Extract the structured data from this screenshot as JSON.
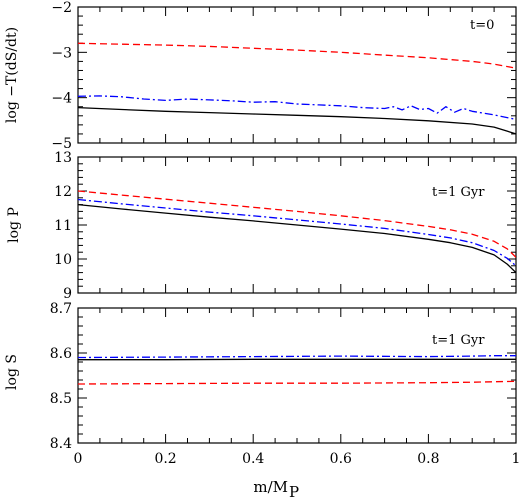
{
  "chart_data": [
    {
      "type": "line",
      "panel_label": "t=0",
      "ylabel": "log −T(dS/dt)",
      "xlim": [
        0,
        1
      ],
      "ylim": [
        -5,
        -2
      ],
      "yticks": [
        "−5",
        "−4",
        "−3",
        "−2"
      ],
      "series": [
        {
          "color": "#000000",
          "dash": "solid",
          "x": [
            0,
            0.1,
            0.2,
            0.3,
            0.4,
            0.5,
            0.6,
            0.7,
            0.8,
            0.9,
            0.95,
            1.0
          ],
          "y": [
            -4.22,
            -4.26,
            -4.3,
            -4.33,
            -4.36,
            -4.39,
            -4.42,
            -4.46,
            -4.51,
            -4.58,
            -4.65,
            -4.8
          ]
        },
        {
          "color": "#ff0000",
          "dash": "dashed",
          "x": [
            0,
            0.1,
            0.2,
            0.3,
            0.4,
            0.5,
            0.6,
            0.7,
            0.8,
            0.9,
            0.95,
            1.0
          ],
          "y": [
            -2.8,
            -2.82,
            -2.84,
            -2.87,
            -2.91,
            -2.95,
            -3.0,
            -3.06,
            -3.12,
            -3.2,
            -3.26,
            -3.35
          ]
        },
        {
          "color": "#0000ff",
          "dash": "dashdot",
          "x": [
            0,
            0.05,
            0.1,
            0.15,
            0.2,
            0.25,
            0.3,
            0.35,
            0.4,
            0.45,
            0.5,
            0.55,
            0.6,
            0.65,
            0.7,
            0.72,
            0.74,
            0.76,
            0.78,
            0.8,
            0.82,
            0.84,
            0.86,
            0.88,
            0.9,
            0.95,
            1.0
          ],
          "y": [
            -3.97,
            -3.96,
            -3.98,
            -4.03,
            -4.06,
            -4.03,
            -4.05,
            -4.07,
            -4.1,
            -4.09,
            -4.14,
            -4.16,
            -4.18,
            -4.22,
            -4.24,
            -4.2,
            -4.27,
            -4.18,
            -4.26,
            -4.24,
            -4.34,
            -4.2,
            -4.32,
            -4.24,
            -4.3,
            -4.38,
            -4.48
          ]
        }
      ]
    },
    {
      "type": "line",
      "panel_label": "t=1 Gyr",
      "ylabel": "log P",
      "xlim": [
        0,
        1
      ],
      "ylim": [
        9,
        13
      ],
      "yticks": [
        "9",
        "10",
        "11",
        "12",
        "13"
      ],
      "series": [
        {
          "color": "#000000",
          "dash": "solid",
          "x": [
            0,
            0.1,
            0.2,
            0.3,
            0.4,
            0.5,
            0.6,
            0.7,
            0.8,
            0.85,
            0.9,
            0.95,
            0.98,
            1.0
          ],
          "y": [
            11.6,
            11.47,
            11.35,
            11.23,
            11.12,
            11.0,
            10.88,
            10.75,
            10.58,
            10.48,
            10.34,
            10.12,
            9.85,
            9.6
          ]
        },
        {
          "color": "#ff0000",
          "dash": "dashed",
          "x": [
            0,
            0.1,
            0.2,
            0.3,
            0.4,
            0.5,
            0.6,
            0.7,
            0.8,
            0.85,
            0.9,
            0.95,
            0.98,
            1.0
          ],
          "y": [
            12.0,
            11.88,
            11.76,
            11.64,
            11.52,
            11.4,
            11.27,
            11.13,
            10.96,
            10.86,
            10.73,
            10.52,
            10.3,
            10.05
          ]
        },
        {
          "color": "#0000ff",
          "dash": "dashdot",
          "x": [
            0,
            0.1,
            0.2,
            0.3,
            0.4,
            0.5,
            0.6,
            0.7,
            0.8,
            0.85,
            0.9,
            0.95,
            0.98,
            1.0
          ],
          "y": [
            11.75,
            11.62,
            11.5,
            11.38,
            11.27,
            11.15,
            11.03,
            10.9,
            10.72,
            10.62,
            10.48,
            10.25,
            10.02,
            9.8
          ]
        }
      ]
    },
    {
      "type": "line",
      "panel_label": "t=1 Gyr",
      "ylabel": "log S",
      "xlabel": "m/M",
      "xlabel_sub": "P",
      "xlim": [
        0,
        1
      ],
      "ylim": [
        8.4,
        8.7
      ],
      "yticks": [
        "8.4",
        "8.5",
        "8.6",
        "8.7"
      ],
      "xticks": [
        "0",
        "0.2",
        "0.4",
        "0.6",
        "0.8",
        "1"
      ],
      "series": [
        {
          "color": "#000000",
          "dash": "solid",
          "x": [
            0,
            0.2,
            0.4,
            0.6,
            0.8,
            1.0
          ],
          "y": [
            8.585,
            8.585,
            8.586,
            8.586,
            8.586,
            8.586
          ]
        },
        {
          "color": "#ff0000",
          "dash": "dashed",
          "x": [
            0,
            0.2,
            0.4,
            0.6,
            0.8,
            0.9,
            1.0
          ],
          "y": [
            8.531,
            8.532,
            8.533,
            8.533,
            8.534,
            8.535,
            8.537
          ]
        },
        {
          "color": "#0000ff",
          "dash": "dashdot",
          "x": [
            0,
            0.2,
            0.4,
            0.6,
            0.8,
            0.9,
            0.95,
            1.0
          ],
          "y": [
            8.59,
            8.591,
            8.592,
            8.593,
            8.592,
            8.593,
            8.594,
            8.594
          ]
        }
      ]
    }
  ]
}
